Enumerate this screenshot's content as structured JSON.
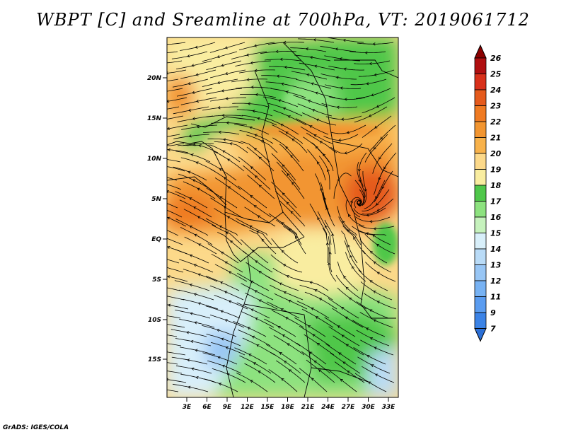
{
  "title": "WBPT [C] and Sreamline at 700hPa, VT: 2019061712",
  "credit": "GrADS: IGES/COLA",
  "map": {
    "lat_ticks": [
      "20N",
      "15N",
      "10N",
      "5N",
      "EQ",
      "5S",
      "10S",
      "15S"
    ],
    "lon_ticks": [
      "3E",
      "6E",
      "9E",
      "12E",
      "15E",
      "18E",
      "21E",
      "24E",
      "27E",
      "30E",
      "33E"
    ]
  },
  "colorbar": {
    "labels": [
      "7",
      "9",
      "11",
      "12",
      "13",
      "14",
      "15",
      "16",
      "17",
      "18",
      "19",
      "20",
      "21",
      "22",
      "23",
      "24",
      "25",
      "26"
    ],
    "colors": [
      "#2b6fd6",
      "#3b83e6",
      "#5a9cf0",
      "#77b2f3",
      "#98c6f5",
      "#b9dbf7",
      "#d8effa",
      "#c6f2bd",
      "#8de27f",
      "#4fc74a",
      "#f9eda0",
      "#fcd98a",
      "#f8b24b",
      "#f29530",
      "#ef7a22",
      "#e55a1c",
      "#d8301a",
      "#b00f10",
      "#8b0000"
    ]
  }
}
